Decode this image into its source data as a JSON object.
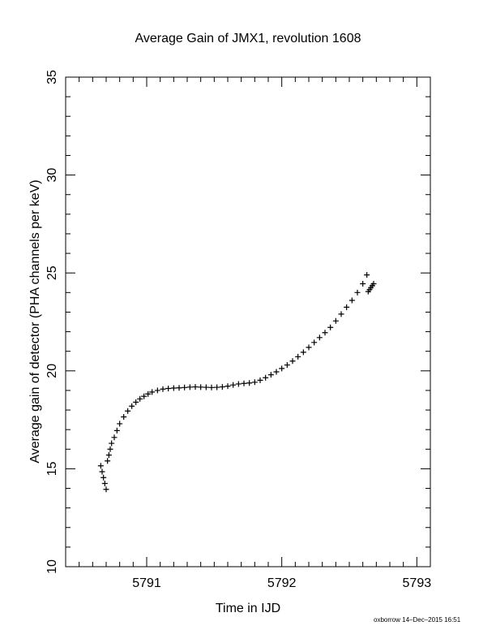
{
  "chart_data": {
    "type": "scatter",
    "title": "Average Gain of JMX1, revolution 1608",
    "xlabel": "Time in IJD",
    "ylabel": "Average gain of detector (PHA channels per keV)",
    "xlim": [
      5790.4,
      5793.1
    ],
    "ylim": [
      10,
      35
    ],
    "xticks": [
      5791,
      5792,
      5793
    ],
    "yticks": [
      10,
      15,
      20,
      25,
      30,
      35
    ],
    "x_minor_step": 0.1,
    "y_minor_step": 1,
    "marker": "plus",
    "marker_color": "#000000",
    "grid": false,
    "legend": "none",
    "points": [
      [
        5790.66,
        15.15
      ],
      [
        5790.67,
        14.85
      ],
      [
        5790.68,
        14.55
      ],
      [
        5790.69,
        14.25
      ],
      [
        5790.7,
        13.95
      ],
      [
        5790.71,
        15.4
      ],
      [
        5790.72,
        15.7
      ],
      [
        5790.73,
        16.0
      ],
      [
        5790.74,
        16.3
      ],
      [
        5790.76,
        16.6
      ],
      [
        5790.78,
        16.95
      ],
      [
        5790.8,
        17.3
      ],
      [
        5790.83,
        17.65
      ],
      [
        5790.86,
        17.95
      ],
      [
        5790.89,
        18.2
      ],
      [
        5790.92,
        18.4
      ],
      [
        5790.95,
        18.57
      ],
      [
        5790.98,
        18.7
      ],
      [
        5791.01,
        18.82
      ],
      [
        5791.04,
        18.92
      ],
      [
        5791.08,
        19.0
      ],
      [
        5791.12,
        19.07
      ],
      [
        5791.16,
        19.1
      ],
      [
        5791.2,
        19.12
      ],
      [
        5791.24,
        19.13
      ],
      [
        5791.28,
        19.15
      ],
      [
        5791.32,
        19.17
      ],
      [
        5791.36,
        19.18
      ],
      [
        5791.4,
        19.17
      ],
      [
        5791.44,
        19.16
      ],
      [
        5791.48,
        19.15
      ],
      [
        5791.52,
        19.16
      ],
      [
        5791.56,
        19.18
      ],
      [
        5791.6,
        19.22
      ],
      [
        5791.64,
        19.28
      ],
      [
        5791.68,
        19.33
      ],
      [
        5791.72,
        19.36
      ],
      [
        5791.76,
        19.38
      ],
      [
        5791.8,
        19.42
      ],
      [
        5791.84,
        19.52
      ],
      [
        5791.88,
        19.65
      ],
      [
        5791.92,
        19.8
      ],
      [
        5791.96,
        19.95
      ],
      [
        5792.0,
        20.12
      ],
      [
        5792.04,
        20.3
      ],
      [
        5792.08,
        20.5
      ],
      [
        5792.12,
        20.72
      ],
      [
        5792.16,
        20.95
      ],
      [
        5792.2,
        21.2
      ],
      [
        5792.24,
        21.45
      ],
      [
        5792.28,
        21.7
      ],
      [
        5792.32,
        21.95
      ],
      [
        5792.36,
        22.22
      ],
      [
        5792.4,
        22.55
      ],
      [
        5792.44,
        22.9
      ],
      [
        5792.48,
        23.25
      ],
      [
        5792.52,
        23.6
      ],
      [
        5792.56,
        24.0
      ],
      [
        5792.6,
        24.45
      ],
      [
        5792.63,
        24.9
      ],
      [
        5792.64,
        24.05
      ],
      [
        5792.65,
        24.15
      ],
      [
        5792.66,
        24.25
      ],
      [
        5792.67,
        24.35
      ],
      [
        5792.68,
        24.45
      ]
    ]
  },
  "footer": {
    "text": "oxborrow 14–Dec–2015 16:51"
  }
}
